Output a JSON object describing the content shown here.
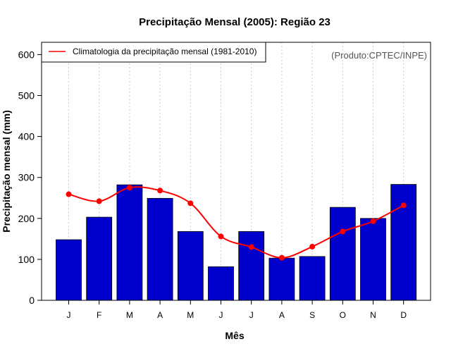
{
  "chart_data": {
    "type": "bar",
    "title": "Precipitação Mensal (2005): Região 23",
    "xlabel": "Mês",
    "ylabel": "Precipitação mensal (mm)",
    "ylim": [
      0,
      630
    ],
    "yticks": [
      0,
      100,
      200,
      300,
      400,
      500,
      600
    ],
    "grid": "vertical dashed",
    "categories": [
      "J",
      "F",
      "M",
      "A",
      "M",
      "J",
      "J",
      "A",
      "S",
      "O",
      "N",
      "D"
    ],
    "series": [
      {
        "name": "Precipitação mensal (2005)",
        "type": "bar",
        "color": "#0000cc",
        "values": [
          148,
          203,
          282,
          249,
          168,
          82,
          168,
          103,
          107,
          227,
          200,
          283
        ]
      },
      {
        "name": "Climatologia da precipitação mensal (1981-2010)",
        "type": "line",
        "color": "#ff0000",
        "values": [
          259,
          242,
          275,
          268,
          237,
          156,
          130,
          104,
          131,
          168,
          193,
          232
        ]
      }
    ],
    "legend": {
      "position": "top-left",
      "label": "Climatologia da precipitação mensal (1981-2010)"
    },
    "annotation": "(Produto:CPTEC/INPE)"
  }
}
